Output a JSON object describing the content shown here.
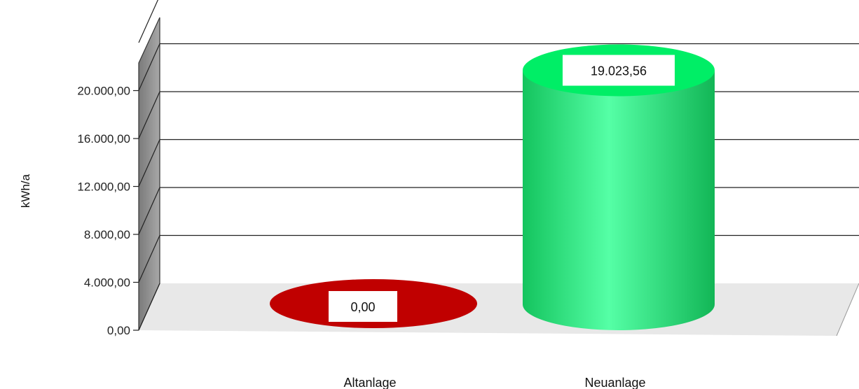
{
  "chart_data": {
    "type": "bar",
    "style": "3d-cylinder",
    "categories": [
      "Altanlage",
      "Neuanlage"
    ],
    "values": [
      0,
      19023.56
    ],
    "data_labels": [
      "0,00",
      "19.023,56"
    ],
    "bar_colors": [
      "#c00000",
      "#22dd77"
    ],
    "ylabel": "kWh/a",
    "xlabel": "",
    "ylim": [
      0,
      24000
    ],
    "y_ticks": [
      0,
      4000,
      8000,
      12000,
      16000,
      20000
    ],
    "y_tick_labels": [
      "0,00",
      "4.000,00",
      "8.000,00",
      "12.000,00",
      "16.000,00",
      "20.000,00"
    ],
    "grid": true,
    "legend": "none"
  }
}
